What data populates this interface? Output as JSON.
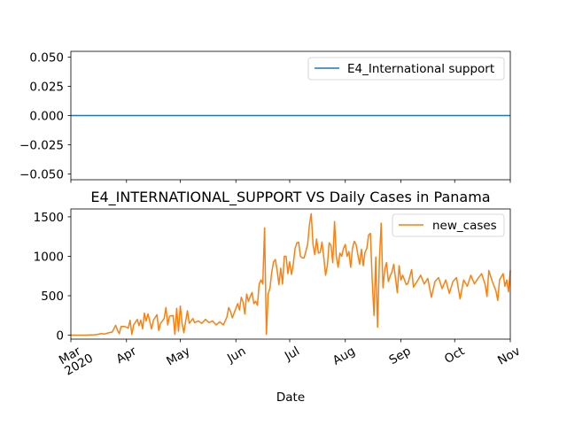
{
  "chart_data": [
    {
      "type": "line",
      "panel": "top",
      "series": [
        {
          "name": "E4_International support",
          "color": "#1f77b4",
          "x": [
            "2020-03-01",
            "2020-11-01"
          ],
          "values": [
            0,
            0
          ]
        }
      ],
      "ylim": [
        -0.055,
        0.055
      ],
      "yticks": [
        0.05,
        0.025,
        0.0,
        -0.025,
        -0.05
      ],
      "ytick_labels": [
        "0.050",
        "0.025",
        "0.000",
        "−0.025",
        "−0.050"
      ],
      "legend": {
        "location": "upper right",
        "entries": [
          "E4_International support"
        ]
      },
      "title": "",
      "xlabel": "",
      "ylabel": ""
    },
    {
      "type": "line",
      "panel": "bottom",
      "title": "E4_INTERNATIONAL_SUPPORT VS Daily Cases in Panama",
      "xlabel": "Date",
      "ylabel": "",
      "ylim": [
        -50,
        1600
      ],
      "yticks": [
        0,
        500,
        1000,
        1500
      ],
      "ytick_labels": [
        "0",
        "500",
        "1000",
        "1500"
      ],
      "x_start": "2020-03-01",
      "x_end": "2020-11-01",
      "xticks": [
        {
          "date": "2020-03-01",
          "label": "Mar",
          "label2": "2020"
        },
        {
          "date": "2020-04-01",
          "label": "Apr"
        },
        {
          "date": "2020-05-01",
          "label": "May"
        },
        {
          "date": "2020-06-01",
          "label": "Jun"
        },
        {
          "date": "2020-07-01",
          "label": "Jul"
        },
        {
          "date": "2020-08-01",
          "label": "Aug"
        },
        {
          "date": "2020-09-01",
          "label": "Sep"
        },
        {
          "date": "2020-10-01",
          "label": "Oct"
        },
        {
          "date": "2020-11-01",
          "label": "Nov"
        }
      ],
      "legend": {
        "location": "upper right",
        "entries": [
          "new_cases"
        ]
      },
      "series": [
        {
          "name": "new_cases",
          "color": "#ff7f0e",
          "points": [
            [
              "2020-03-01",
              0
            ],
            [
              "2020-03-09",
              0
            ],
            [
              "2020-03-10",
              1
            ],
            [
              "2020-03-12",
              3
            ],
            [
              "2020-03-14",
              5
            ],
            [
              "2020-03-16",
              10
            ],
            [
              "2020-03-18",
              20
            ],
            [
              "2020-03-20",
              15
            ],
            [
              "2020-03-22",
              30
            ],
            [
              "2020-03-24",
              40
            ],
            [
              "2020-03-26",
              125
            ],
            [
              "2020-03-27",
              60
            ],
            [
              "2020-03-28",
              20
            ],
            [
              "2020-03-29",
              110
            ],
            [
              "2020-03-31",
              110
            ],
            [
              "2020-04-02",
              90
            ],
            [
              "2020-04-03",
              190
            ],
            [
              "2020-04-04",
              10
            ],
            [
              "2020-04-05",
              130
            ],
            [
              "2020-04-07",
              200
            ],
            [
              "2020-04-08",
              120
            ],
            [
              "2020-04-09",
              190
            ],
            [
              "2020-04-10",
              80
            ],
            [
              "2020-04-11",
              280
            ],
            [
              "2020-04-12",
              180
            ],
            [
              "2020-04-13",
              270
            ],
            [
              "2020-04-15",
              80
            ],
            [
              "2020-04-16",
              190
            ],
            [
              "2020-04-18",
              260
            ],
            [
              "2020-04-19",
              60
            ],
            [
              "2020-04-20",
              150
            ],
            [
              "2020-04-22",
              210
            ],
            [
              "2020-04-23",
              350
            ],
            [
              "2020-04-24",
              130
            ],
            [
              "2020-04-25",
              240
            ],
            [
              "2020-04-27",
              250
            ],
            [
              "2020-04-28",
              10
            ],
            [
              "2020-04-29",
              340
            ],
            [
              "2020-04-30",
              50
            ],
            [
              "2020-05-01",
              370
            ],
            [
              "2020-05-02",
              150
            ],
            [
              "2020-05-03",
              30
            ],
            [
              "2020-05-04",
              180
            ],
            [
              "2020-05-05",
              310
            ],
            [
              "2020-05-06",
              150
            ],
            [
              "2020-05-08",
              210
            ],
            [
              "2020-05-09",
              160
            ],
            [
              "2020-05-11",
              180
            ],
            [
              "2020-05-13",
              150
            ],
            [
              "2020-05-15",
              200
            ],
            [
              "2020-05-17",
              160
            ],
            [
              "2020-05-19",
              180
            ],
            [
              "2020-05-21",
              130
            ],
            [
              "2020-05-23",
              170
            ],
            [
              "2020-05-25",
              130
            ],
            [
              "2020-05-27",
              230
            ],
            [
              "2020-05-28",
              350
            ],
            [
              "2020-05-29",
              300
            ],
            [
              "2020-05-30",
              220
            ],
            [
              "2020-05-31",
              280
            ],
            [
              "2020-06-02",
              400
            ],
            [
              "2020-06-03",
              320
            ],
            [
              "2020-06-04",
              480
            ],
            [
              "2020-06-05",
              420
            ],
            [
              "2020-06-06",
              270
            ],
            [
              "2020-06-07",
              520
            ],
            [
              "2020-06-08",
              430
            ],
            [
              "2020-06-09",
              490
            ],
            [
              "2020-06-10",
              540
            ],
            [
              "2020-06-11",
              400
            ],
            [
              "2020-06-12",
              430
            ],
            [
              "2020-06-13",
              380
            ],
            [
              "2020-06-14",
              650
            ],
            [
              "2020-06-15",
              700
            ],
            [
              "2020-06-16",
              650
            ],
            [
              "2020-06-17",
              1360
            ],
            [
              "2020-06-18",
              10
            ],
            [
              "2020-06-19",
              520
            ],
            [
              "2020-06-20",
              600
            ],
            [
              "2020-06-21",
              800
            ],
            [
              "2020-06-22",
              930
            ],
            [
              "2020-06-23",
              960
            ],
            [
              "2020-06-24",
              820
            ],
            [
              "2020-06-25",
              640
            ],
            [
              "2020-06-26",
              850
            ],
            [
              "2020-06-27",
              650
            ],
            [
              "2020-06-28",
              1000
            ],
            [
              "2020-06-29",
              1000
            ],
            [
              "2020-06-30",
              780
            ],
            [
              "2020-07-01",
              930
            ],
            [
              "2020-07-02",
              770
            ],
            [
              "2020-07-03",
              900
            ],
            [
              "2020-07-04",
              1100
            ],
            [
              "2020-07-05",
              1170
            ],
            [
              "2020-07-06",
              1180
            ],
            [
              "2020-07-07",
              1000
            ],
            [
              "2020-07-08",
              980
            ],
            [
              "2020-07-09",
              980
            ],
            [
              "2020-07-10",
              1060
            ],
            [
              "2020-07-11",
              1150
            ],
            [
              "2020-07-12",
              1400
            ],
            [
              "2020-07-13",
              1540
            ],
            [
              "2020-07-14",
              1150
            ],
            [
              "2020-07-15",
              1020
            ],
            [
              "2020-07-16",
              1220
            ],
            [
              "2020-07-17",
              1040
            ],
            [
              "2020-07-18",
              1050
            ],
            [
              "2020-07-19",
              1180
            ],
            [
              "2020-07-20",
              990
            ],
            [
              "2020-07-21",
              760
            ],
            [
              "2020-07-22",
              880
            ],
            [
              "2020-07-23",
              1170
            ],
            [
              "2020-07-24",
              1140
            ],
            [
              "2020-07-25",
              920
            ],
            [
              "2020-07-26",
              1440
            ],
            [
              "2020-07-27",
              1000
            ],
            [
              "2020-07-28",
              860
            ],
            [
              "2020-07-29",
              1040
            ],
            [
              "2020-07-30",
              1000
            ],
            [
              "2020-07-31",
              1100
            ],
            [
              "2020-08-01",
              1150
            ],
            [
              "2020-08-02",
              1000
            ],
            [
              "2020-08-03",
              1060
            ],
            [
              "2020-08-04",
              860
            ],
            [
              "2020-08-05",
              1100
            ],
            [
              "2020-08-06",
              1190
            ],
            [
              "2020-08-07",
              1150
            ],
            [
              "2020-08-08",
              1020
            ],
            [
              "2020-08-09",
              900
            ],
            [
              "2020-08-10",
              1090
            ],
            [
              "2020-08-11",
              880
            ],
            [
              "2020-08-12",
              1050
            ],
            [
              "2020-08-13",
              1100
            ],
            [
              "2020-08-14",
              1270
            ],
            [
              "2020-08-15",
              1290
            ],
            [
              "2020-08-16",
              700
            ],
            [
              "2020-08-17",
              250
            ],
            [
              "2020-08-18",
              990
            ],
            [
              "2020-08-19",
              100
            ],
            [
              "2020-08-20",
              940
            ],
            [
              "2020-08-21",
              1420
            ],
            [
              "2020-08-22",
              600
            ],
            [
              "2020-08-23",
              830
            ],
            [
              "2020-08-24",
              920
            ],
            [
              "2020-08-25",
              680
            ],
            [
              "2020-08-26",
              750
            ],
            [
              "2020-08-27",
              800
            ],
            [
              "2020-08-28",
              900
            ],
            [
              "2020-08-29",
              720
            ],
            [
              "2020-08-30",
              540
            ],
            [
              "2020-08-31",
              880
            ],
            [
              "2020-09-01",
              700
            ],
            [
              "2020-09-02",
              760
            ],
            [
              "2020-09-04",
              640
            ],
            [
              "2020-09-05",
              660
            ],
            [
              "2020-09-07",
              830
            ],
            [
              "2020-09-08",
              610
            ],
            [
              "2020-09-10",
              680
            ],
            [
              "2020-09-12",
              760
            ],
            [
              "2020-09-14",
              650
            ],
            [
              "2020-09-16",
              720
            ],
            [
              "2020-09-18",
              480
            ],
            [
              "2020-09-20",
              680
            ],
            [
              "2020-09-22",
              730
            ],
            [
              "2020-09-24",
              590
            ],
            [
              "2020-09-26",
              700
            ],
            [
              "2020-09-28",
              530
            ],
            [
              "2020-09-30",
              680
            ],
            [
              "2020-10-02",
              730
            ],
            [
              "2020-10-04",
              460
            ],
            [
              "2020-10-06",
              700
            ],
            [
              "2020-10-08",
              620
            ],
            [
              "2020-10-10",
              760
            ],
            [
              "2020-10-12",
              650
            ],
            [
              "2020-10-14",
              720
            ],
            [
              "2020-10-16",
              780
            ],
            [
              "2020-10-18",
              640
            ],
            [
              "2020-10-19",
              490
            ],
            [
              "2020-10-20",
              820
            ],
            [
              "2020-10-22",
              680
            ],
            [
              "2020-10-24",
              560
            ],
            [
              "2020-10-25",
              440
            ],
            [
              "2020-10-26",
              700
            ],
            [
              "2020-10-28",
              780
            ],
            [
              "2020-10-29",
              620
            ],
            [
              "2020-10-30",
              700
            ],
            [
              "2020-10-31",
              550
            ],
            [
              "2020-11-01",
              820
            ]
          ]
        }
      ]
    }
  ]
}
